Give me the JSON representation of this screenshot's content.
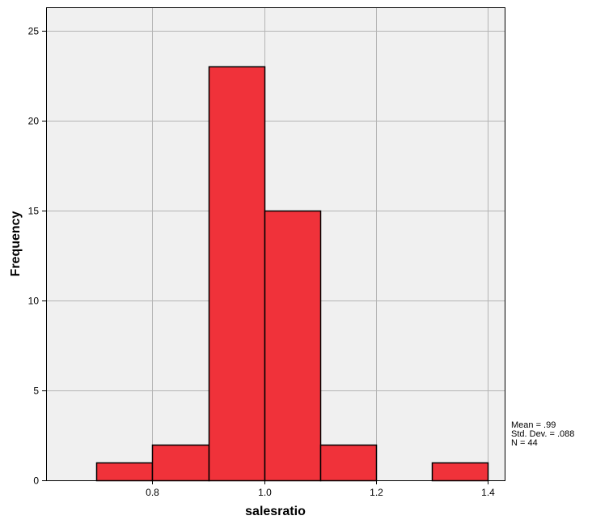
{
  "chart_data": {
    "type": "bar",
    "title": "",
    "xlabel": "salesratio",
    "ylabel": "Frequency",
    "bins": [
      {
        "start": 0.7,
        "end": 0.8,
        "count": 1
      },
      {
        "start": 0.8,
        "end": 0.9,
        "count": 2
      },
      {
        "start": 0.9,
        "end": 1.0,
        "count": 23
      },
      {
        "start": 1.0,
        "end": 1.1,
        "count": 15
      },
      {
        "start": 1.1,
        "end": 1.2,
        "count": 2
      },
      {
        "start": 1.2,
        "end": 1.3,
        "count": 0
      },
      {
        "start": 1.3,
        "end": 1.4,
        "count": 1
      }
    ],
    "xlim": [
      0.61,
      1.43
    ],
    "ylim": [
      0,
      26.3
    ],
    "xticks": [
      "0.8",
      "1.0",
      "1.2",
      "1.4"
    ],
    "xtick_values": [
      0.8,
      1.0,
      1.2,
      1.4
    ],
    "yticks": [
      "0",
      "5",
      "10",
      "15",
      "20",
      "25"
    ],
    "ytick_values": [
      0,
      5,
      10,
      15,
      20,
      25
    ],
    "grid": true,
    "colors": {
      "bar_fill": "#f0323a",
      "bar_edge": "#000000",
      "plot_bg": "#f0f0f0",
      "grid": "#b4b4b4"
    },
    "stats": {
      "mean": "Mean = .99",
      "std_dev": "Std. Dev. = .088",
      "n": "N = 44"
    }
  }
}
